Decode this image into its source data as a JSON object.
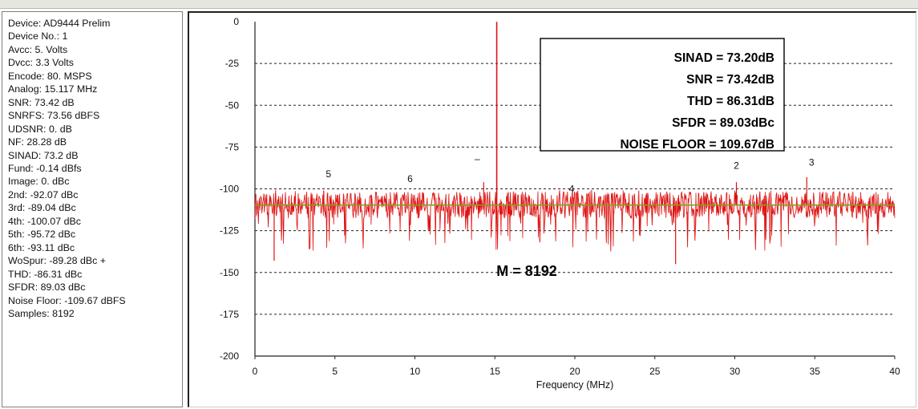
{
  "panel": {
    "lines": [
      "Device: AD9444 Prelim",
      "Device No.: 1",
      "Avcc: 5. Volts",
      "Dvcc: 3.3 Volts",
      "Encode: 80. MSPS",
      "Analog: 15.117 MHz",
      "SNR: 73.42 dB",
      "SNRFS: 73.56 dBFS",
      "UDSNR: 0. dB",
      "NF: 28.28 dB",
      "SINAD: 73.2 dB",
      "Fund: -0.14 dBfs",
      "Image: 0. dBc",
      "2nd: -92.07 dBc",
      "3rd: -89.04 dBc",
      "4th: -100.07 dBc",
      "5th: -95.72 dBc",
      "6th: -93.11 dBc",
      "WoSpur: -89.28 dBc +",
      "THD: -86.31 dBc",
      "SFDR: 89.03 dBc",
      "Noise Floor: -109.67 dBFS",
      "Samples: 8192"
    ]
  },
  "colors": {
    "trace": "#e01010",
    "trace_light": "#e8a0a0",
    "average_line": "#8a9a20",
    "grid": "#222222",
    "axis": "#222222"
  },
  "chart_data": {
    "type": "line",
    "title": "",
    "xlabel": "Frequency (MHz)",
    "ylabel": "",
    "xlim": [
      0,
      40
    ],
    "ylim": [
      -200,
      0
    ],
    "x_ticks": [
      0,
      5,
      10,
      15,
      20,
      25,
      30,
      35,
      40
    ],
    "x_tick_labels": [
      "0",
      "5",
      "10",
      "15",
      "20",
      "25",
      "30",
      "35",
      "40"
    ],
    "y_ticks": [
      0,
      -25,
      -50,
      -75,
      -100,
      -125,
      -150,
      -175,
      -200
    ],
    "y_tick_labels": [
      "0",
      "-25",
      "-50",
      "-75",
      "-100",
      "-125",
      "-150",
      "-175",
      "-200"
    ],
    "grid": "horizontal dashed",
    "noise_floor_avg": -109.67,
    "fundamental": {
      "x": 15.117,
      "y": -0.14
    },
    "spurs": [
      {
        "x": 14.3,
        "y": -96
      },
      {
        "x": 4.3,
        "y": -101
      },
      {
        "x": 30.1,
        "y": -96
      },
      {
        "x": 34.5,
        "y": -93
      },
      {
        "x": 26.3,
        "y": -145
      },
      {
        "x": 1.2,
        "y": -143
      }
    ],
    "harmonic_markers": [
      {
        "label": "5",
        "x": 4.6,
        "y": -93
      },
      {
        "label": "6",
        "x": 9.7,
        "y": -96
      },
      {
        "label": "–",
        "x": 13.9,
        "y": -84
      },
      {
        "label": "4",
        "x": 19.8,
        "y": -102
      },
      {
        "label": "2",
        "x": 30.1,
        "y": -88
      },
      {
        "label": "3",
        "x": 34.8,
        "y": -86
      }
    ],
    "stats_box": [
      "SINAD = 73.20dB",
      "SNR = 73.42dB",
      "THD = 86.31dB",
      "SFDR = 89.03dBc",
      "NOISE FLOOR = 109.67dB"
    ],
    "annotation": "M = 8192"
  }
}
